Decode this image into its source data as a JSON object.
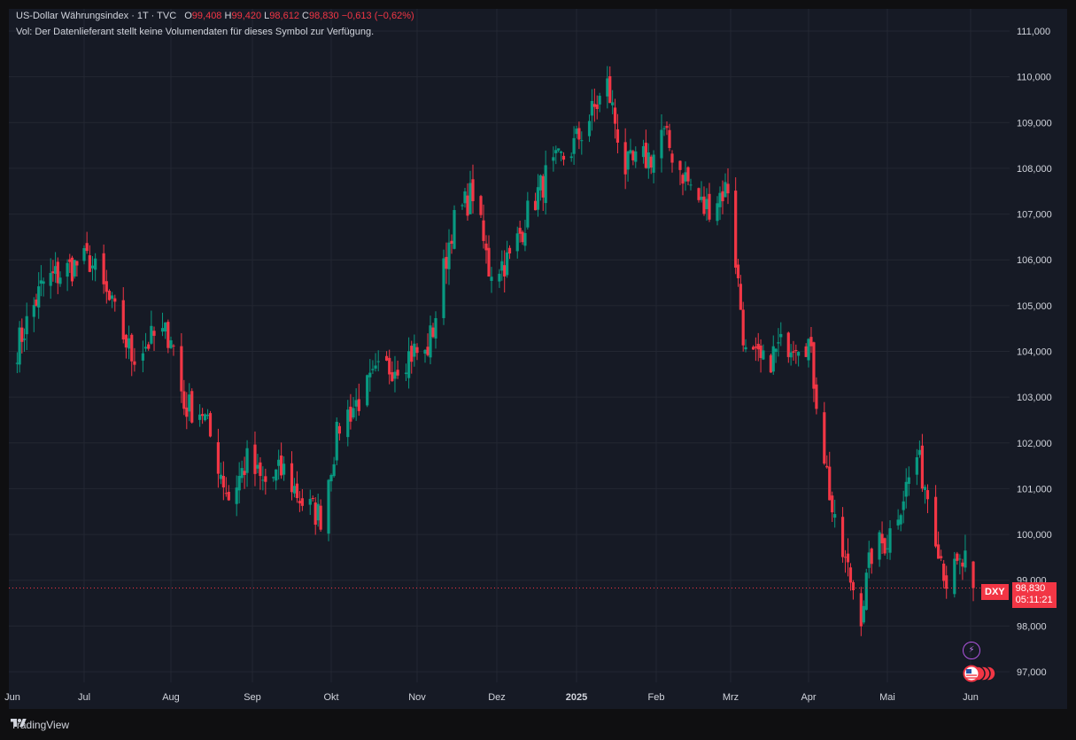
{
  "legend": {
    "title": "US-Dollar Währungsindex · 1T · TVC",
    "open_label": "O",
    "open": "99,408",
    "high_label": "H",
    "high": "99,420",
    "low_label": "L",
    "low": "98,612",
    "close_label": "C",
    "close": "98,830",
    "change": "−0,613 (−0,62%)",
    "volume_note": "Vol: Der Datenlieferant stellt keine Volumendaten für dieses Symbol zur Verfügung."
  },
  "price_tag": {
    "symbol": "DXY",
    "price": "98,830",
    "countdown": "05:11:21"
  },
  "footer": {
    "brand": "TradingView"
  },
  "icons": {
    "bolt": "lightning-bolt-icon",
    "flags": "us-flag-icon"
  },
  "colors": {
    "up": "#089981",
    "down": "#f23645",
    "background": "#161a25",
    "grid": "#232732"
  },
  "chart_data": {
    "type": "candlestick",
    "y_ticks": [
      "111,000",
      "110,000",
      "109,000",
      "108,000",
      "107,000",
      "106,000",
      "105,000",
      "104,000",
      "103,000",
      "102,000",
      "101,000",
      "100,000",
      "99,000",
      "98,000",
      "97,000"
    ],
    "ylim": [
      96.8,
      111.5
    ],
    "x_ticks": [
      "Jun",
      "Jul",
      "Aug",
      "Sep",
      "Okt",
      "Nov",
      "Dez",
      "2025",
      "Feb",
      "Mrz",
      "Apr",
      "Mai",
      "Jun"
    ],
    "bold_x_tick": "2025",
    "current_price": 98.83,
    "grid": true,
    "waypoints": [
      [
        "2024-06-03",
        104.1
      ],
      [
        "2024-06-14",
        105.5
      ],
      [
        "2024-06-28",
        105.9
      ],
      [
        "2024-07-03",
        106.0
      ],
      [
        "2024-07-12",
        104.8
      ],
      [
        "2024-07-18",
        103.9
      ],
      [
        "2024-07-26",
        104.3
      ],
      [
        "2024-08-01",
        104.4
      ],
      [
        "2024-08-06",
        102.8
      ],
      [
        "2024-08-13",
        102.7
      ],
      [
        "2024-08-23",
        100.8
      ],
      [
        "2024-08-30",
        101.6
      ],
      [
        "2024-09-05",
        101.1
      ],
      [
        "2024-09-13",
        101.4
      ],
      [
        "2024-09-20",
        100.7
      ],
      [
        "2024-09-27",
        100.4
      ],
      [
        "2024-10-04",
        102.4
      ],
      [
        "2024-10-18",
        103.5
      ],
      [
        "2024-10-31",
        104.0
      ],
      [
        "2024-11-04",
        103.9
      ],
      [
        "2024-11-07",
        104.5
      ],
      [
        "2024-11-14",
        106.7
      ],
      [
        "2024-11-22",
        107.5
      ],
      [
        "2024-11-28",
        105.8
      ],
      [
        "2024-12-06",
        106.0
      ],
      [
        "2024-12-13",
        107.0
      ],
      [
        "2024-12-20",
        107.8
      ],
      [
        "2024-12-31",
        108.5
      ],
      [
        "2025-01-13",
        109.8
      ],
      [
        "2025-01-20",
        108.0
      ],
      [
        "2025-01-31",
        108.3
      ],
      [
        "2025-02-03",
        108.8
      ],
      [
        "2025-02-10",
        108.0
      ],
      [
        "2025-02-19",
        107.1
      ],
      [
        "2025-02-28",
        107.6
      ],
      [
        "2025-03-07",
        103.9
      ],
      [
        "2025-03-14",
        103.7
      ],
      [
        "2025-03-21",
        104.1
      ],
      [
        "2025-03-27",
        104.3
      ],
      [
        "2025-04-01",
        104.2
      ],
      [
        "2025-04-04",
        103.0
      ],
      [
        "2025-04-11",
        100.1
      ],
      [
        "2025-04-21",
        98.3
      ],
      [
        "2025-04-25",
        99.6
      ],
      [
        "2025-05-01",
        99.9
      ],
      [
        "2025-05-12",
        101.7
      ],
      [
        "2025-05-16",
        100.9
      ],
      [
        "2025-05-23",
        99.0
      ],
      [
        "2025-05-30",
        99.4
      ],
      [
        "2025-06-02",
        98.83
      ]
    ]
  }
}
